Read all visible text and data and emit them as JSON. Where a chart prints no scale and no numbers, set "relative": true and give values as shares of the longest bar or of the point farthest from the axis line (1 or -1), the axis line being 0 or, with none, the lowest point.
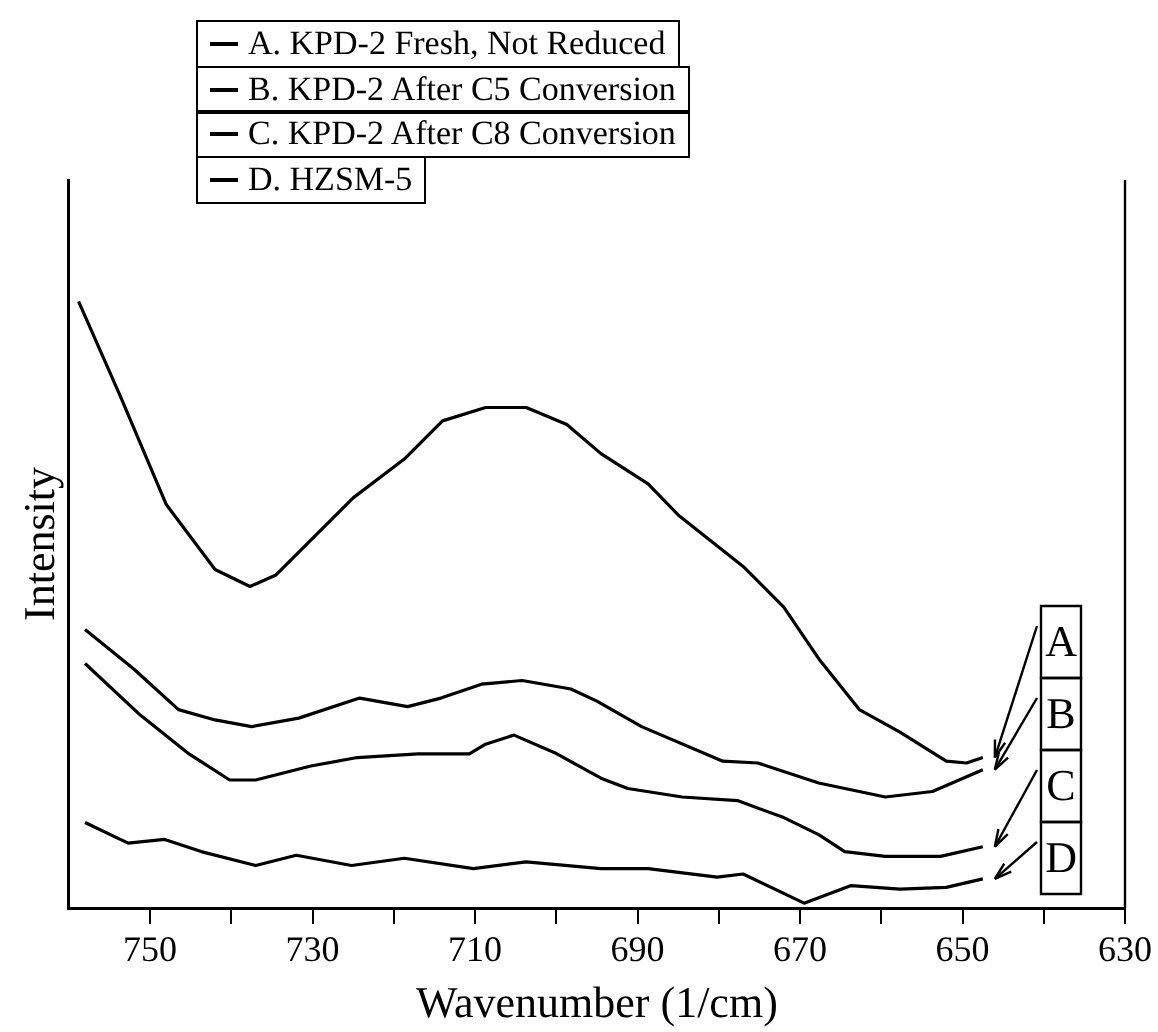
{
  "chart_data": {
    "type": "line",
    "relative": true,
    "xlabel": "Wavenumber (1/cm)",
    "ylabel": "Intensity",
    "xlim": [
      760,
      630
    ],
    "xticks": [
      750,
      {
        "value": 740,
        "label": null
      },
      730,
      {
        "value": 720,
        "label": null
      },
      710,
      {
        "value": 700,
        "label": null
      },
      690,
      {
        "value": 680,
        "label": null
      },
      670,
      {
        "value": 660,
        "label": null
      },
      650,
      {
        "value": 640,
        "label": null
      },
      630
    ],
    "legend": "top",
    "grid": false,
    "marker": "none",
    "line_style": "solid",
    "series": [
      {
        "name": "A. KPD-2 Fresh, Not Reduced",
        "color": "#000000",
        "x": [
          758.8,
          753.7,
          748,
          742,
          737.7,
          734.5,
          725,
          718.7,
          714,
          708.7,
          703.7,
          698.7,
          694.5,
          688.7,
          685,
          677,
          672,
          667.7,
          662.7,
          657.7,
          652,
          649.5,
          647.5
        ],
        "values": [
          1.0,
          0.845,
          0.665,
          0.558,
          0.53,
          0.549,
          0.676,
          0.74,
          0.803,
          0.825,
          0.825,
          0.797,
          0.749,
          0.699,
          0.648,
          0.563,
          0.496,
          0.411,
          0.327,
          0.29,
          0.242,
          0.239,
          0.248
        ]
      },
      {
        "name": "B. KPD-2 After C5 Conversion",
        "color": "#000000",
        "x": [
          758,
          752,
          746.5,
          742,
          737.5,
          731.7,
          724.2,
          718.3,
          714.2,
          709.2,
          704.2,
          698.2,
          695,
          689.5,
          679.5,
          675.2,
          667.7,
          659.5,
          653.7,
          647.5
        ],
        "values": [
          0.459,
          0.394,
          0.327,
          0.31,
          0.299,
          0.313,
          0.346,
          0.332,
          0.346,
          0.369,
          0.375,
          0.361,
          0.341,
          0.299,
          0.242,
          0.239,
          0.206,
          0.183,
          0.192,
          0.228
        ]
      },
      {
        "name": "C. KPD-2 After C8 Conversion",
        "color": "#000000",
        "x": [
          758,
          751.2,
          745.2,
          740.2,
          737,
          730.2,
          724.5,
          717,
          710.7,
          708.7,
          705.2,
          700.2,
          694.5,
          691.2,
          684.5,
          677.7,
          672,
          667.7,
          664.5,
          659.5,
          652.7,
          647.5
        ],
        "values": [
          0.403,
          0.318,
          0.254,
          0.211,
          0.211,
          0.234,
          0.248,
          0.254,
          0.254,
          0.27,
          0.285,
          0.256,
          0.214,
          0.197,
          0.183,
          0.177,
          0.149,
          0.121,
          0.093,
          0.085,
          0.085,
          0.101
        ]
      },
      {
        "name": "D. HZSM-5",
        "color": "#000000",
        "x": [
          758,
          752.7,
          748.2,
          743.7,
          737,
          732,
          725.2,
          718.7,
          710.2,
          703.7,
          694.5,
          688.7,
          680.2,
          677,
          669.5,
          663.7,
          657.7,
          652,
          647.5
        ],
        "values": [
          0.141,
          0.107,
          0.113,
          0.093,
          0.07,
          0.087,
          0.07,
          0.082,
          0.065,
          0.076,
          0.065,
          0.065,
          0.051,
          0.056,
          0.008,
          0.037,
          0.031,
          0.034,
          0.048
        ]
      }
    ],
    "annotations": [
      "A",
      "B",
      "C",
      "D"
    ]
  }
}
